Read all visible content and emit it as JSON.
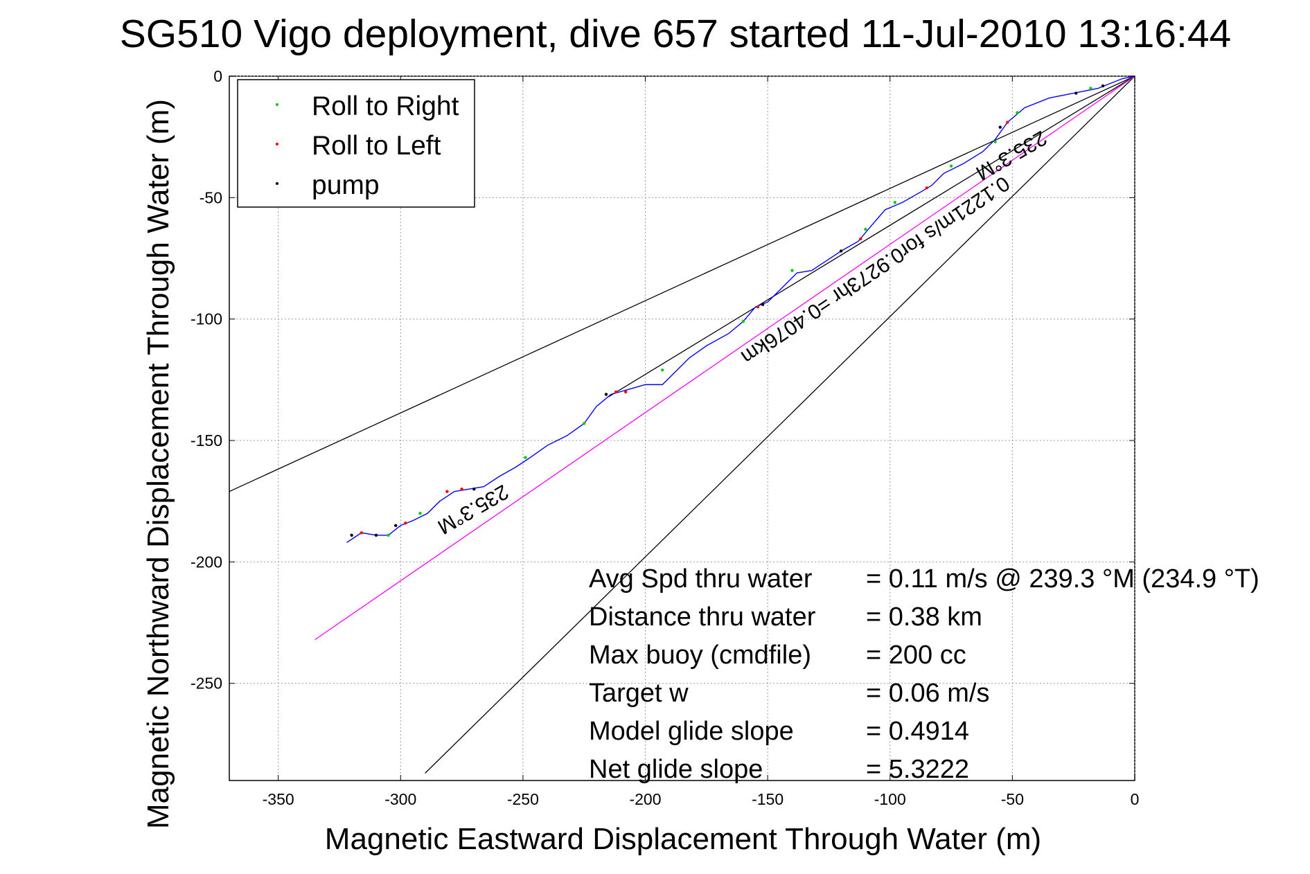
{
  "chart_data": {
    "type": "scatter",
    "title": "SG510 Vigo deployment, dive 657 started 11-Jul-2010 13:16:44",
    "xlabel": "Magnetic Eastward Displacement Through Water (m)",
    "ylabel": "Magnetic Northward Displacement Through Water (m)",
    "xlim": [
      -370,
      0
    ],
    "ylim": [
      -290,
      0
    ],
    "grid": true,
    "x_ticks": [
      -350,
      -300,
      -250,
      -200,
      -150,
      -100,
      -50,
      0
    ],
    "y_ticks": [
      0,
      -50,
      -100,
      -150,
      -200,
      -250
    ],
    "x_tick_labels": [
      "-350",
      "-300",
      "-250",
      "-200",
      "-150",
      "-100",
      "-50",
      "0"
    ],
    "y_tick_labels": [
      "0",
      "-50",
      "-100",
      "-150",
      "-200",
      "-250"
    ],
    "legend": {
      "position": "top-left",
      "entries": [
        {
          "label": "Roll to Right",
          "color": "#00cc00"
        },
        {
          "label": "Roll to Left",
          "color": "#ff0000"
        },
        {
          "label": "pump",
          "color": "#000000"
        }
      ]
    },
    "track": {
      "color": "#0000ff",
      "points": [
        [
          0,
          0
        ],
        [
          -5,
          -1
        ],
        [
          -15,
          -5
        ],
        [
          -25,
          -7
        ],
        [
          -35,
          -9
        ],
        [
          -45,
          -13
        ],
        [
          -52,
          -19
        ],
        [
          -57,
          -26
        ],
        [
          -62,
          -31
        ],
        [
          -70,
          -36
        ],
        [
          -78,
          -40
        ],
        [
          -83,
          -45
        ],
        [
          -88,
          -48
        ],
        [
          -95,
          -52
        ],
        [
          -102,
          -55
        ],
        [
          -108,
          -62
        ],
        [
          -113,
          -68
        ],
        [
          -120,
          -72
        ],
        [
          -126,
          -76
        ],
        [
          -132,
          -80
        ],
        [
          -138,
          -81
        ],
        [
          -145,
          -88
        ],
        [
          -150,
          -93
        ],
        [
          -155,
          -95
        ],
        [
          -160,
          -101
        ],
        [
          -166,
          -106
        ],
        [
          -175,
          -111
        ],
        [
          -182,
          -116
        ],
        [
          -187,
          -121
        ],
        [
          -193,
          -127
        ],
        [
          -200,
          -127
        ],
        [
          -207,
          -129
        ],
        [
          -214,
          -131
        ],
        [
          -220,
          -136
        ],
        [
          -225,
          -143
        ],
        [
          -232,
          -148
        ],
        [
          -240,
          -152
        ],
        [
          -247,
          -157
        ],
        [
          -253,
          -161
        ],
        [
          -260,
          -165
        ],
        [
          -266,
          -169
        ],
        [
          -272,
          -170
        ],
        [
          -278,
          -171
        ],
        [
          -284,
          -175
        ],
        [
          -289,
          -180
        ],
        [
          -295,
          -183
        ],
        [
          -300,
          -185
        ],
        [
          -305,
          -189
        ],
        [
          -310,
          -189
        ],
        [
          -316,
          -188
        ],
        [
          -322,
          -192
        ]
      ]
    },
    "markers": {
      "roll_right": [
        [
          -18,
          -5
        ],
        [
          -48,
          -15
        ],
        [
          -57,
          -27
        ],
        [
          -75,
          -37
        ],
        [
          -98,
          -52
        ],
        [
          -110,
          -63
        ],
        [
          -140,
          -80
        ],
        [
          -160,
          -101
        ],
        [
          -193,
          -121
        ],
        [
          -225,
          -143
        ],
        [
          -249,
          -157
        ],
        [
          -292,
          -180
        ],
        [
          -305,
          -189
        ]
      ],
      "roll_left": [
        [
          -52,
          -19
        ],
        [
          -85,
          -46
        ],
        [
          -112,
          -67
        ],
        [
          -154,
          -95
        ],
        [
          -208,
          -130
        ],
        [
          -212,
          -130
        ],
        [
          -275,
          -170
        ],
        [
          -281,
          -171
        ],
        [
          -298,
          -184
        ],
        [
          -316,
          -188
        ]
      ],
      "pump": [
        [
          -13,
          -4
        ],
        [
          -24,
          -7
        ],
        [
          -55,
          -21
        ],
        [
          -120,
          -72
        ],
        [
          -152,
          -94
        ],
        [
          -216,
          -131
        ],
        [
          -270,
          -170
        ],
        [
          -302,
          -185
        ],
        [
          -310,
          -189
        ],
        [
          -320,
          -189
        ]
      ]
    },
    "heading_lines": [
      {
        "name": "bound-upper",
        "color": "#000000",
        "points": [
          [
            0,
            0
          ],
          [
            -370,
            -171
          ]
        ]
      },
      {
        "name": "bound-lower",
        "color": "#000000",
        "points": [
          [
            0,
            0
          ],
          [
            -290,
            -287
          ]
        ]
      },
      {
        "name": "thin-black",
        "color": "#000000",
        "points": [
          [
            0,
            0
          ],
          [
            -215,
            -132
          ]
        ]
      },
      {
        "name": "net-drift",
        "color": "#ff00ff",
        "points": [
          [
            0,
            0
          ],
          [
            -335,
            -232
          ]
        ]
      }
    ],
    "line_labels": [
      {
        "text": "235.3°M",
        "name": "label-heading-start"
      },
      {
        "text": "0.1221m/s for0.9273hr =0.4076km",
        "name": "label-drift"
      },
      {
        "text": "235.3°M",
        "name": "label-heading-end"
      }
    ],
    "stats": [
      {
        "label": "Avg Spd thru water",
        "value": "=  0.11 m/s @ 239.3 °M (234.9 °T)"
      },
      {
        "label": "Distance thru water",
        "value": "=  0.38 km"
      },
      {
        "label": "Max buoy (cmdfile)",
        "value": "= 200 cc"
      },
      {
        "label": "Target w",
        "value": "= 0.06 m/s"
      },
      {
        "label": "Model glide slope",
        "value": "= 0.4914"
      },
      {
        "label": "Net glide slope",
        "value": "= 5.3222"
      }
    ]
  }
}
